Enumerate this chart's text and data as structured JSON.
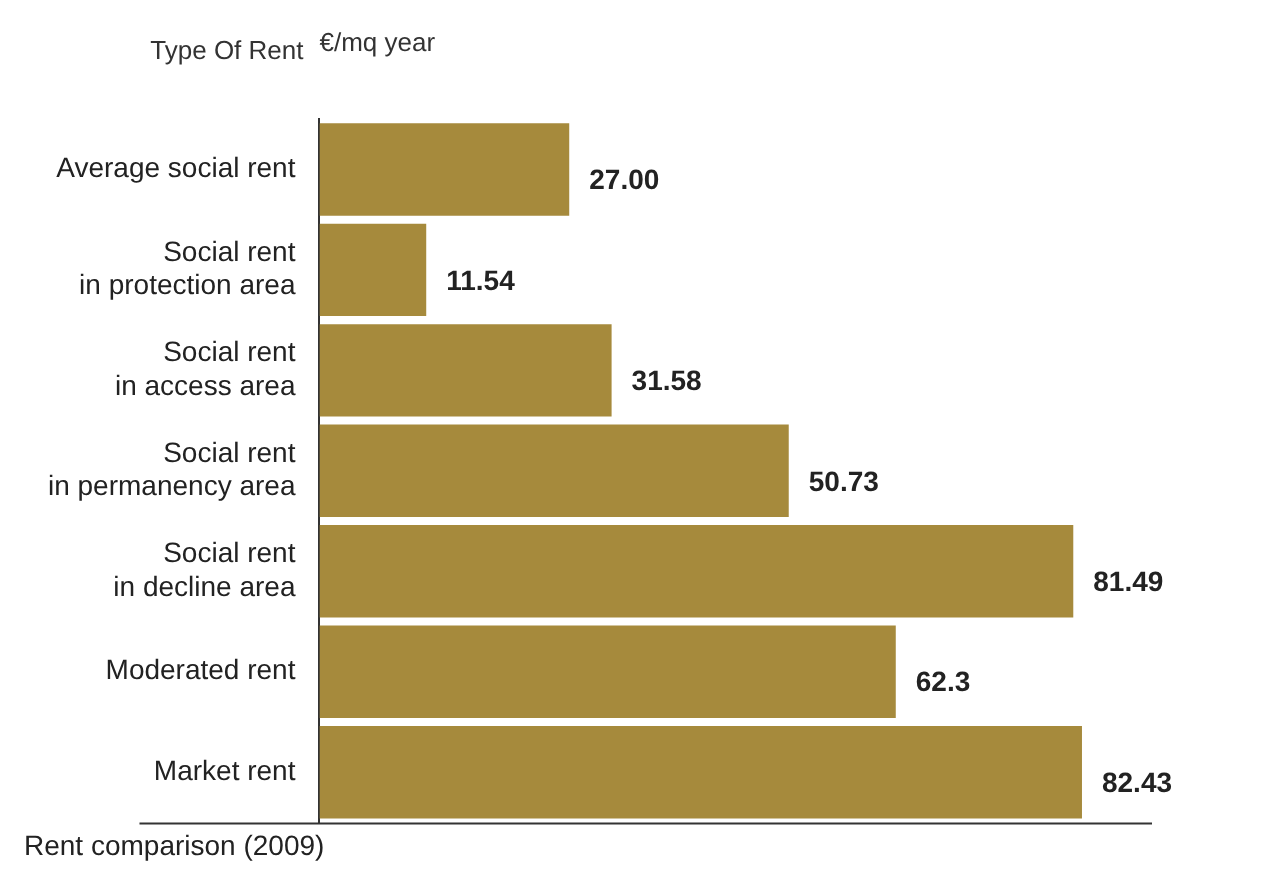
{
  "chart_data": {
    "type": "bar",
    "orientation": "horizontal",
    "ylabel": "Type Of Rent",
    "xlabel": "€/mq year",
    "title": "Rent comparison (2009)",
    "categories": [
      "Average social rent",
      "Social rent in protection area",
      "Social rent in access area",
      "Social rent in permanency area",
      "Social rent in decline area",
      "Moderated rent",
      "Market rent"
    ],
    "values": [
      27.0,
      11.54,
      31.58,
      50.73,
      81.49,
      62.3,
      82.43
    ],
    "value_labels": [
      "27.00",
      "11.54",
      "31.58",
      "50.73",
      "81.49",
      "62.3",
      "82.43"
    ],
    "color": "#a68a3c",
    "grid": false,
    "legend": false
  }
}
